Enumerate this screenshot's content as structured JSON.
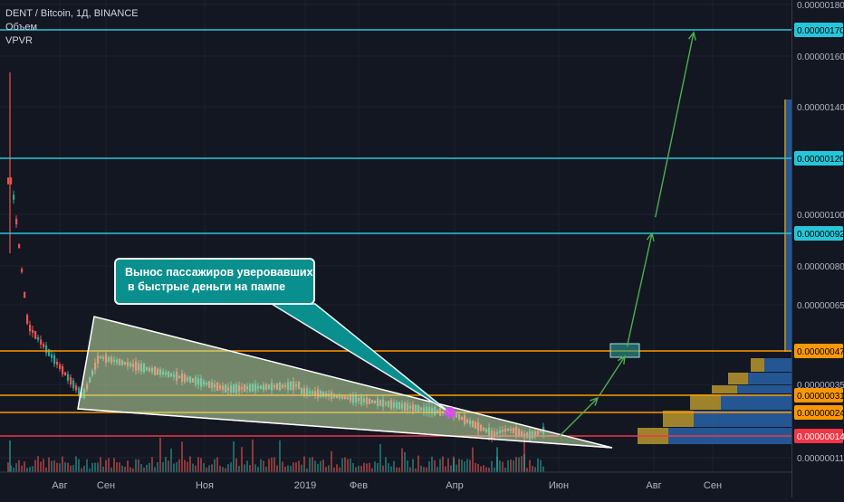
{
  "header": {
    "symbol": "DENT / Bitcoin, 1Д, BINANCE",
    "volume": "Объем",
    "vpvr": "VPVR"
  },
  "annotation": {
    "line1": "Вынос пассажиров уверовавших",
    "line2": "в быстрые деньги на пампе"
  },
  "chart_data": {
    "type": "line",
    "symbol": "DENT / Bitcoin",
    "interval": "1Д",
    "exchange": "BINANCE",
    "x_ticks": [
      "Авг",
      "Сен",
      "Ноя",
      "2019",
      "Фев",
      "Апр",
      "Июн",
      "Авг",
      "Сен"
    ],
    "y_ticks": [
      "0.00000180",
      "0.00000160",
      "0.00000140",
      "0.00000120",
      "0.00000100",
      "0.00000080",
      "0.00000065",
      "0.00000035",
      "0.00000011"
    ],
    "price_levels": [
      {
        "label": "0.00000170",
        "value": 1.7e-06,
        "color": "#26c6da"
      },
      {
        "label": "0.00000120",
        "value": 1.2e-06,
        "color": "#26c6da"
      },
      {
        "label": "0.00000092",
        "value": 9.2e-07,
        "color": "#26c6da"
      },
      {
        "label": "0.00000047",
        "value": 4.7e-07,
        "color": "#ff9800"
      },
      {
        "label": "0.00000031",
        "value": 3.1e-07,
        "color": "#ff9800"
      },
      {
        "label": "0.00000024",
        "value": 2.4e-07,
        "color": "#ff9800"
      },
      {
        "label": "0.00000014",
        "value": 1.4e-07,
        "color": "#f23645"
      }
    ],
    "projection_path": [
      {
        "date": "2019-05-10",
        "value": 1.5e-07
      },
      {
        "date": "2019-06-01",
        "value": 2.4e-07
      },
      {
        "date": "2019-07-01",
        "value": 3.1e-07
      },
      {
        "date": "2019-07-20",
        "value": 4.7e-07
      },
      {
        "date": "2019-08-05",
        "value": 9.2e-07
      },
      {
        "date": "2019-08-25",
        "value": 1.7e-06
      }
    ],
    "colors": {
      "background": "#131722",
      "up": "#26a69a",
      "down": "#ef5350",
      "triangle": "#c5e1a5",
      "arrow": "#4caf50",
      "callout": "#0a8f8f",
      "vpvr_up": "#2962a8",
      "vpvr_down": "#b8962e"
    }
  }
}
